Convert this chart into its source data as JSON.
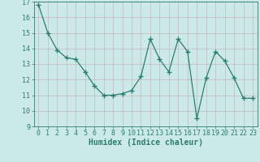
{
  "x": [
    0,
    1,
    2,
    3,
    4,
    5,
    6,
    7,
    8,
    9,
    10,
    11,
    12,
    13,
    14,
    15,
    16,
    17,
    18,
    19,
    20,
    21,
    22,
    23
  ],
  "y": [
    16.8,
    15.0,
    13.9,
    13.4,
    13.3,
    12.5,
    11.6,
    11.0,
    11.0,
    11.1,
    11.3,
    12.2,
    14.6,
    13.3,
    12.5,
    14.6,
    13.8,
    9.5,
    12.1,
    13.8,
    13.2,
    12.1,
    10.8,
    10.8
  ],
  "xlabel": "Humidex (Indice chaleur)",
  "ylim": [
    9,
    17
  ],
  "xlim": [
    -0.5,
    23.5
  ],
  "yticks": [
    9,
    10,
    11,
    12,
    13,
    14,
    15,
    16,
    17
  ],
  "xticks": [
    0,
    1,
    2,
    3,
    4,
    5,
    6,
    7,
    8,
    9,
    10,
    11,
    12,
    13,
    14,
    15,
    16,
    17,
    18,
    19,
    20,
    21,
    22,
    23
  ],
  "line_color": "#2d7d6e",
  "marker": "+",
  "bg_color": "#cce9ea",
  "grid_color": "#c8b8b8",
  "xlabel_color": "#2d7d6e",
  "label_fontsize": 7.0,
  "tick_fontsize": 6.0
}
